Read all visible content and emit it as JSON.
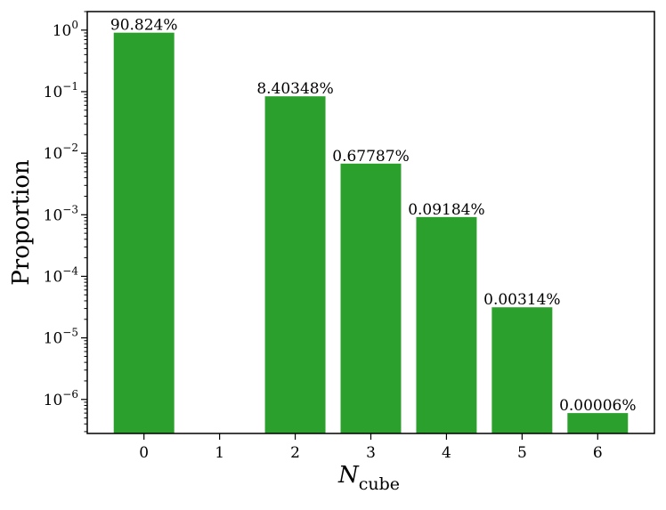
{
  "chart_data": {
    "type": "bar",
    "categories": [
      "0",
      "1",
      "2",
      "3",
      "4",
      "5",
      "6"
    ],
    "values": [
      0.90824,
      null,
      0.0840348,
      0.0067787,
      0.0009184,
      3.14e-05,
      6e-07
    ],
    "data_labels": [
      "90.824%",
      "",
      "8.40348%",
      "0.67787%",
      "0.09184%",
      "0.00314%",
      "0.00006%"
    ],
    "xlabel": {
      "main": "N",
      "sub": "cube"
    },
    "ylabel": "Proportion",
    "yscale": "log",
    "ylim": [
      2.8e-07,
      2.0
    ],
    "yticks": [
      {
        "base": "10",
        "exp": "0",
        "value": 1
      },
      {
        "base": "10",
        "exp": "−1",
        "value": 0.1
      },
      {
        "base": "10",
        "exp": "−2",
        "value": 0.01
      },
      {
        "base": "10",
        "exp": "−3",
        "value": 0.001
      },
      {
        "base": "10",
        "exp": "−4",
        "value": 0.0001
      },
      {
        "base": "10",
        "exp": "−5",
        "value": 1e-05
      },
      {
        "base": "10",
        "exp": "−6",
        "value": 1e-06
      }
    ],
    "bar_color": "#2ca02c",
    "grid": false,
    "legend": "none"
  }
}
